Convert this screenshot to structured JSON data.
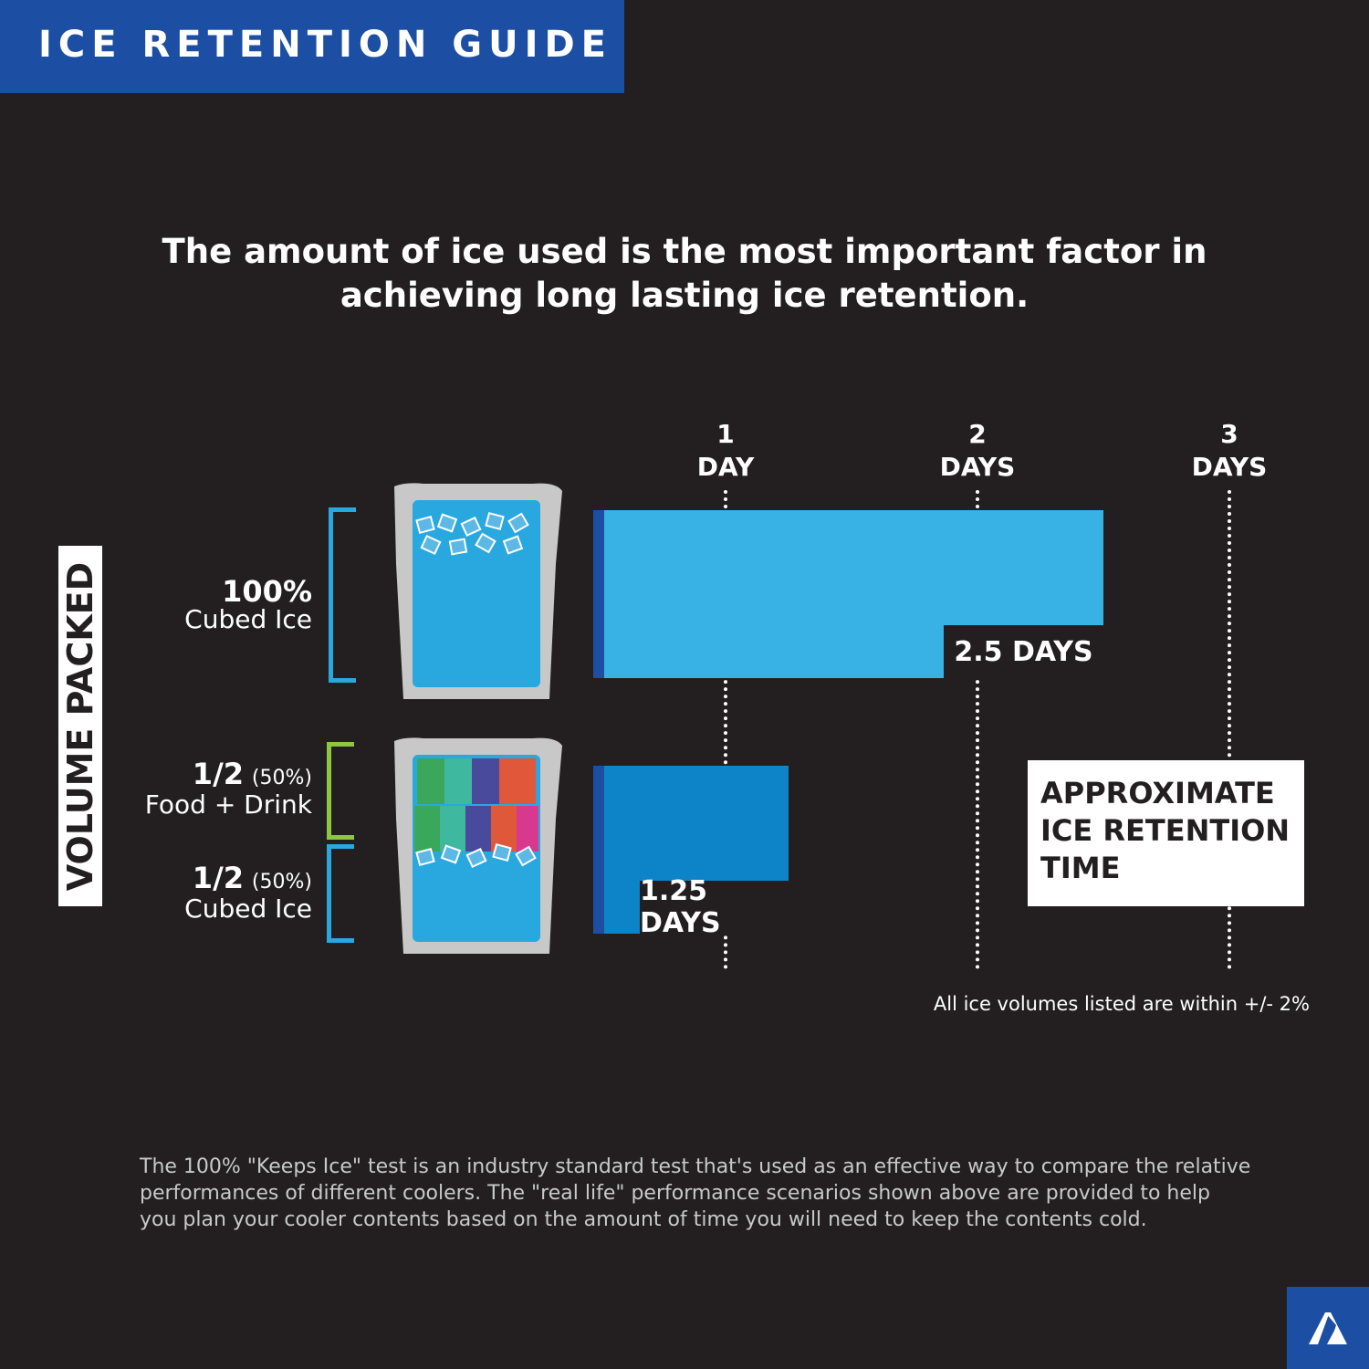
{
  "header": {
    "title": "ICE RETENTION GUIDE"
  },
  "headline": "The amount of ice used is the most important factor in achieving long lasting ice retention.",
  "y_axis_label": "VOLUME PACKED",
  "rows": [
    {
      "amount": "100%",
      "desc": "Cubed Ice"
    },
    {
      "amount": "1/2",
      "pct": "(50%)",
      "desc": "Food + Drink"
    },
    {
      "amount": "1/2",
      "pct": "(50%)",
      "desc": "Cubed Ice"
    }
  ],
  "legend": "APPROXIMATE ICE RETENTION TIME",
  "note": "All ice volumes listed are within +/- 2%",
  "footnote": "The 100% \"Keeps Ice\" test is an industry standard test that's used as an effective way to compare the relative performances of different coolers. The \"real life\" performance scenarios shown above are provided to help you plan your cooler contents based on the amount of time you will need to keep the contents cold.",
  "colors": {
    "background": "#231f20",
    "brand": "#1c4fa3",
    "bar1": "#38b1e5",
    "bar2": "#0d84c8",
    "bracket_ice": "#29a8e0",
    "bracket_food": "#8dc63f"
  },
  "chart_data": {
    "type": "bar",
    "orientation": "horizontal",
    "categories": [
      "100% Cubed Ice",
      "1/2 Food + Drink, 1/2 Cubed Ice"
    ],
    "values": [
      2.5,
      1.25
    ],
    "value_labels": [
      "2.5 DAYS",
      "1.25 DAYS"
    ],
    "ticks": [
      {
        "value": 1,
        "num": "1",
        "unit": "DAY"
      },
      {
        "value": 2,
        "num": "2",
        "unit": "DAYS"
      },
      {
        "value": 3,
        "num": "3",
        "unit": "DAYS"
      }
    ],
    "xlabel": "Approximate ice retention time (days)",
    "xlim": [
      0,
      3
    ]
  }
}
